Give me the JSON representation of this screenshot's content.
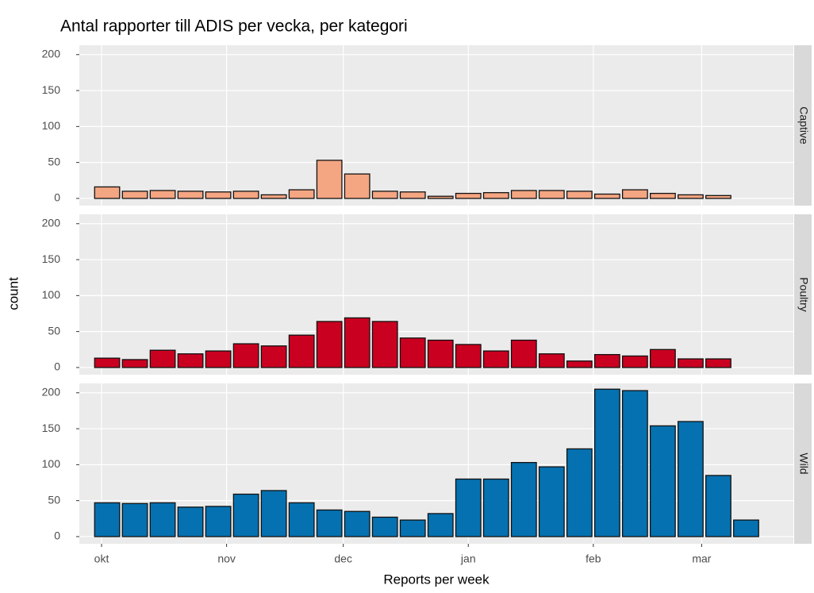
{
  "chart_data": {
    "type": "bar",
    "title": "Antal rapporter till ADIS per vecka, per kategori",
    "x_label": "Reports per week",
    "y_label": "count",
    "categories": [
      null,
      null,
      null,
      null,
      null,
      null,
      null,
      null,
      null,
      null,
      null,
      null,
      null,
      null,
      null,
      null,
      null,
      null,
      null,
      null,
      null,
      null,
      null,
      null
    ],
    "xlim": [
      -1.0,
      24.7
    ],
    "xticks": [
      {
        "value": -0.2,
        "label": "okt"
      },
      {
        "value": 4.3,
        "label": "nov"
      },
      {
        "value": 8.5,
        "label": "dec"
      },
      {
        "value": 13.0,
        "label": "jan"
      },
      {
        "value": 17.5,
        "label": "feb"
      },
      {
        "value": 21.4,
        "label": "mar"
      }
    ],
    "ylim": [
      -10,
      213
    ],
    "yticks": [
      0,
      50,
      100,
      150,
      200
    ],
    "grid": true,
    "series": [
      {
        "name": "Captive",
        "color": "#f4a582",
        "values": [
          16,
          10,
          11,
          10,
          9,
          10,
          5,
          12,
          53,
          34,
          10,
          9,
          3,
          7,
          8,
          11,
          11,
          10,
          6,
          12,
          7,
          5,
          4,
          null
        ]
      },
      {
        "name": "Poultry",
        "color": "#ca0020",
        "values": [
          13,
          11,
          24,
          19,
          23,
          33,
          30,
          45,
          64,
          69,
          64,
          41,
          38,
          32,
          23,
          38,
          19,
          9,
          18,
          16,
          25,
          12,
          12,
          null
        ]
      },
      {
        "name": "Wild",
        "color": "#0571b0",
        "values": [
          47,
          46,
          47,
          41,
          42,
          59,
          64,
          47,
          37,
          35,
          27,
          23,
          32,
          80,
          80,
          103,
          97,
          122,
          205,
          203,
          154,
          160,
          85,
          23
        ]
      }
    ]
  }
}
